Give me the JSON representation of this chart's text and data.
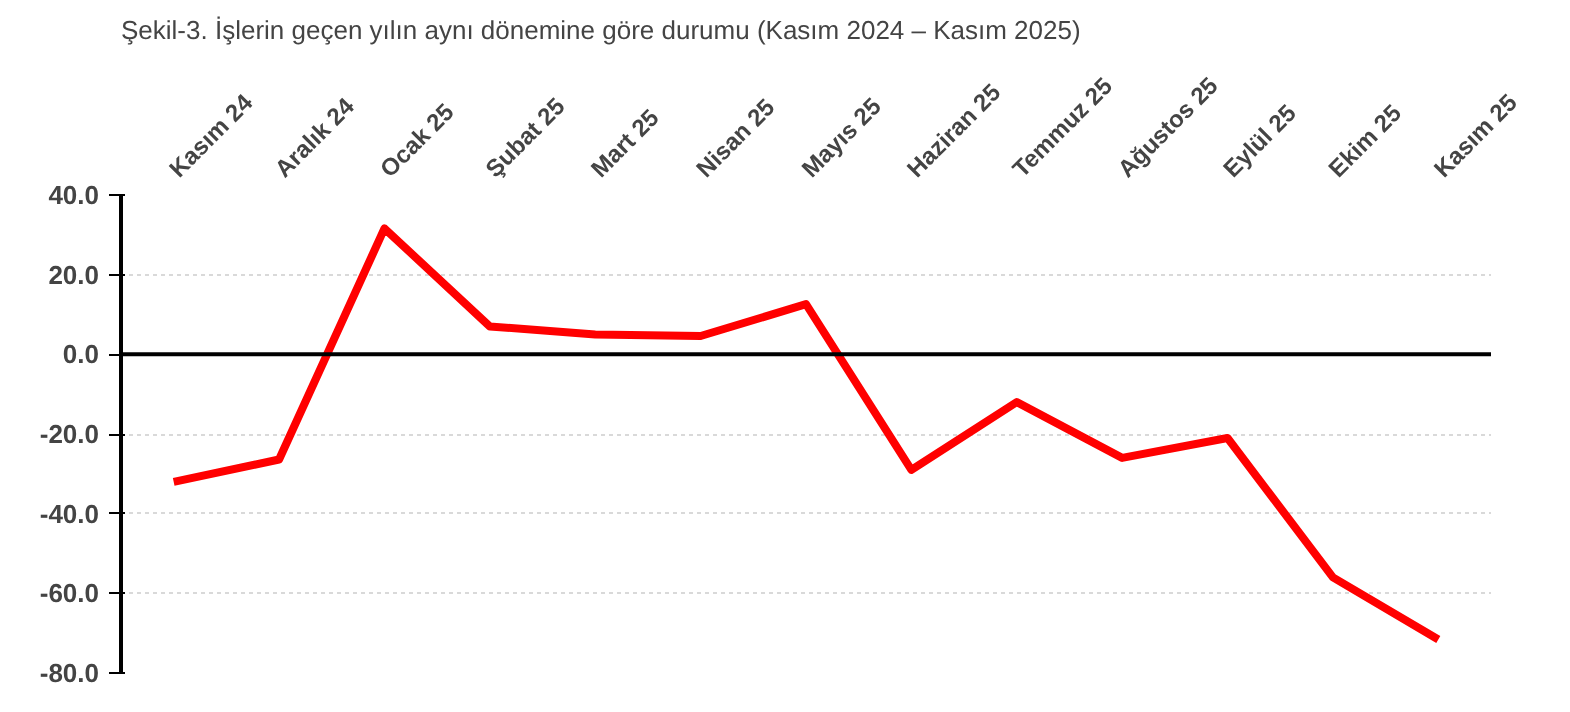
{
  "chart_data": {
    "type": "line",
    "title": "Şekil-3. İşlerin geçen yılın aynı dönemine göre durumu (Kasım 2024 – Kasım 2025)",
    "categories": [
      "Kasım 24",
      "Aralık 24",
      "Ocak 25",
      "Şubat 25",
      "Mart 25",
      "Nisan 25",
      "Mayıs 25",
      "Haziran 25",
      "Temmuz 25",
      "Ağustos 25",
      "Eylül 25",
      "Ekim 25",
      "Kasım 25"
    ],
    "series": [
      {
        "color": "#ff0000",
        "values": [
          -32,
          -26.4,
          31.6,
          7,
          5,
          4.6,
          12.6,
          -29,
          -12,
          -26,
          -21,
          -56,
          -71.6
        ]
      }
    ],
    "ylim": [
      -80,
      40
    ],
    "yticks": [
      {
        "value": -80,
        "label": "-80.0"
      },
      {
        "value": -60,
        "label": "-60.0"
      },
      {
        "value": -40,
        "label": "-40.0"
      },
      {
        "value": -20,
        "label": "-20.0"
      },
      {
        "value": 0,
        "label": "0.0"
      },
      {
        "value": 20,
        "label": "20.0"
      },
      {
        "value": 40,
        "label": "40.0"
      }
    ],
    "ref_lines": [
      {
        "axis": "y",
        "value": 0,
        "color": "#000000"
      }
    ],
    "grid": "y",
    "marker": "none",
    "line_style": "solid"
  }
}
